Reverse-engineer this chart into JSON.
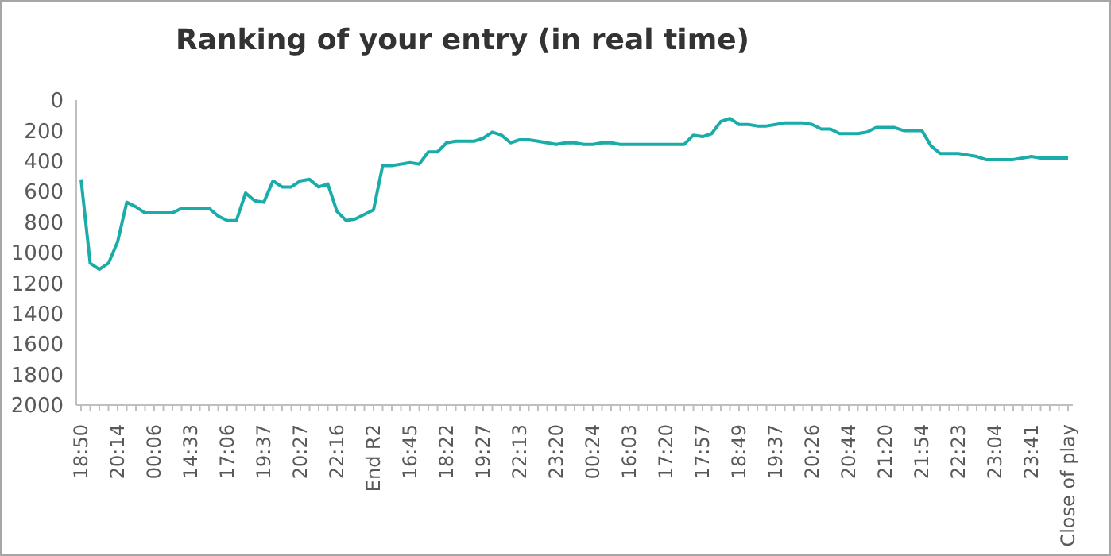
{
  "chart_data": {
    "type": "line",
    "title": "Ranking of your entry (in real time)",
    "categories": [
      "18:50",
      null,
      null,
      null,
      "20:14",
      null,
      null,
      null,
      "00:06",
      null,
      null,
      null,
      "14:33",
      null,
      null,
      null,
      "17:06",
      null,
      null,
      null,
      "19:37",
      null,
      null,
      null,
      "20:27",
      null,
      null,
      null,
      "22:16",
      null,
      null,
      null,
      "End R2",
      null,
      null,
      null,
      "16:45",
      null,
      null,
      null,
      "18:22",
      null,
      null,
      null,
      "19:27",
      null,
      null,
      null,
      "22:13",
      null,
      null,
      null,
      "23:20",
      null,
      null,
      null,
      "00:24",
      null,
      null,
      null,
      "16:03",
      null,
      null,
      null,
      "17:20",
      null,
      null,
      null,
      "17:57",
      null,
      null,
      null,
      "18:49",
      null,
      null,
      null,
      "19:37",
      null,
      null,
      null,
      "20:26",
      null,
      null,
      null,
      "20:44",
      null,
      null,
      null,
      "21:20",
      null,
      null,
      null,
      "21:54",
      null,
      null,
      null,
      "22:23",
      null,
      null,
      null,
      "23:04",
      null,
      null,
      null,
      "23:41",
      null,
      null,
      null,
      "Close of play"
    ],
    "series": [
      {
        "color": "#1aaca9",
        "values": [
          520,
          1070,
          1110,
          1070,
          930,
          670,
          700,
          740,
          740,
          740,
          740,
          710,
          710,
          710,
          710,
          760,
          790,
          790,
          610,
          660,
          670,
          530,
          570,
          570,
          530,
          520,
          570,
          550,
          730,
          790,
          780,
          750,
          720,
          430,
          430,
          420,
          410,
          420,
          340,
          340,
          280,
          270,
          270,
          270,
          250,
          210,
          230,
          280,
          260,
          260,
          270,
          280,
          290,
          280,
          280,
          290,
          290,
          280,
          280,
          290,
          290,
          290,
          290,
          290,
          290,
          290,
          290,
          230,
          240,
          220,
          140,
          120,
          160,
          160,
          170,
          170,
          160,
          150,
          150,
          150,
          160,
          190,
          190,
          220,
          220,
          220,
          210,
          180,
          180,
          180,
          200,
          200,
          200,
          300,
          350,
          350,
          350,
          360,
          370,
          390,
          390,
          390,
          390,
          380,
          370,
          380,
          380,
          380,
          380
        ]
      }
    ],
    "ylim": [
      2000,
      0
    ],
    "yticks": [
      0,
      200,
      400,
      600,
      800,
      1000,
      1200,
      1400,
      1600,
      1800,
      2000
    ],
    "grid": false,
    "legend": false,
    "marker": "none",
    "line_style": "solid"
  }
}
